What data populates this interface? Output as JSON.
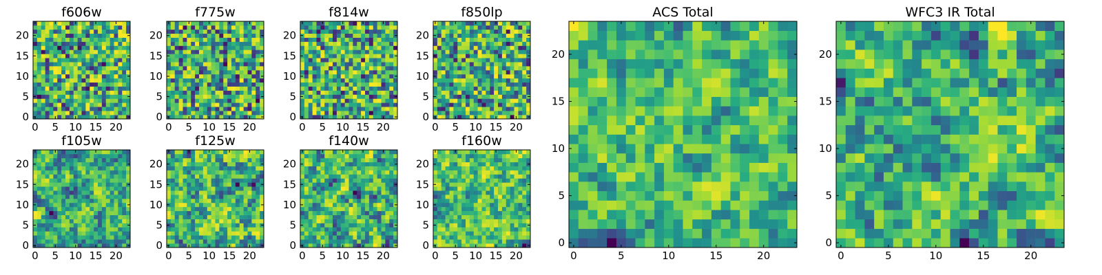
{
  "chart_data": [
    {
      "type": "heatmap",
      "title": "f606w",
      "seed": 11,
      "grid": 24,
      "smooth": 0,
      "xlim": [
        0,
        24
      ],
      "ylim": [
        0,
        24
      ],
      "xticks": [
        0,
        5,
        10,
        15,
        20
      ],
      "yticks": [
        0,
        5,
        10,
        15,
        20
      ],
      "colormap": "viridis"
    },
    {
      "type": "heatmap",
      "title": "f775w",
      "seed": 23,
      "grid": 24,
      "smooth": 0,
      "xlim": [
        0,
        24
      ],
      "ylim": [
        0,
        24
      ],
      "xticks": [
        0,
        5,
        10,
        15,
        20
      ],
      "yticks": [
        0,
        5,
        10,
        15,
        20
      ],
      "colormap": "viridis"
    },
    {
      "type": "heatmap",
      "title": "f814w",
      "seed": 37,
      "grid": 24,
      "smooth": 0,
      "xlim": [
        0,
        24
      ],
      "ylim": [
        0,
        24
      ],
      "xticks": [
        0,
        5,
        10,
        15,
        20
      ],
      "yticks": [
        0,
        5,
        10,
        15,
        20
      ],
      "colormap": "viridis"
    },
    {
      "type": "heatmap",
      "title": "f850lp",
      "seed": 41,
      "grid": 24,
      "smooth": 0,
      "xlim": [
        0,
        24
      ],
      "ylim": [
        0,
        24
      ],
      "xticks": [
        0,
        5,
        10,
        15,
        20
      ],
      "yticks": [
        0,
        5,
        10,
        15,
        20
      ],
      "colormap": "viridis"
    },
    {
      "type": "heatmap",
      "title": "f105w",
      "seed": 53,
      "grid": 24,
      "smooth": 1,
      "xlim": [
        0,
        24
      ],
      "ylim": [
        0,
        24
      ],
      "xticks": [
        0,
        5,
        10,
        15,
        20
      ],
      "yticks": [
        0,
        5,
        10,
        15,
        20
      ],
      "colormap": "viridis"
    },
    {
      "type": "heatmap",
      "title": "f125w",
      "seed": 67,
      "grid": 24,
      "smooth": 1,
      "xlim": [
        0,
        24
      ],
      "ylim": [
        0,
        24
      ],
      "xticks": [
        0,
        5,
        10,
        15,
        20
      ],
      "yticks": [
        0,
        5,
        10,
        15,
        20
      ],
      "colormap": "viridis"
    },
    {
      "type": "heatmap",
      "title": "f140w",
      "seed": 79,
      "grid": 24,
      "smooth": 1,
      "xlim": [
        0,
        24
      ],
      "ylim": [
        0,
        24
      ],
      "xticks": [
        0,
        5,
        10,
        15,
        20
      ],
      "yticks": [
        0,
        5,
        10,
        15,
        20
      ],
      "colormap": "viridis"
    },
    {
      "type": "heatmap",
      "title": "f160w",
      "seed": 83,
      "grid": 24,
      "smooth": 1,
      "xlim": [
        0,
        24
      ],
      "ylim": [
        0,
        24
      ],
      "xticks": [
        0,
        5,
        10,
        15,
        20
      ],
      "yticks": [
        0,
        5,
        10,
        15,
        20
      ],
      "colormap": "viridis"
    },
    {
      "type": "heatmap",
      "title": "ACS Total",
      "seed": 97,
      "grid": 24,
      "smooth": 1,
      "xlim": [
        0,
        24
      ],
      "ylim": [
        0,
        24
      ],
      "xticks": [
        0,
        5,
        10,
        15,
        20
      ],
      "yticks": [
        0,
        5,
        10,
        15,
        20
      ],
      "colormap": "viridis"
    },
    {
      "type": "heatmap",
      "title": "WFC3 IR Total",
      "seed": 101,
      "grid": 24,
      "smooth": 1,
      "xlim": [
        0,
        24
      ],
      "ylim": [
        0,
        24
      ],
      "xticks": [
        0,
        5,
        10,
        15,
        20
      ],
      "yticks": [
        0,
        5,
        10,
        15,
        20
      ],
      "colormap": "viridis"
    }
  ]
}
